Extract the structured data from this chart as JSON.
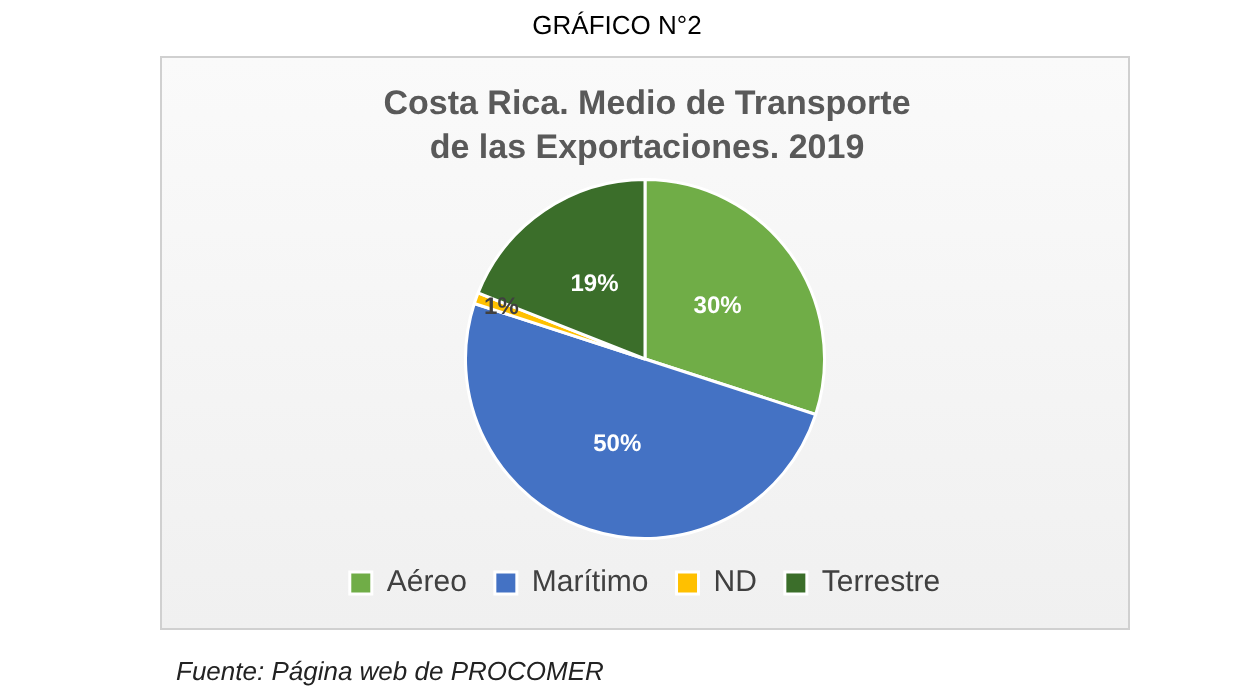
{
  "chart_data": {
    "type": "pie",
    "title": "Costa Rica. Medio de Transporte de las Exportaciones. 2019",
    "categories": [
      "Aéreo",
      "Marítimo",
      "ND",
      "Terrestre"
    ],
    "values": [
      30,
      50,
      1,
      19
    ],
    "colors": [
      "#70ad47",
      "#4472c4",
      "#ffc000",
      "#3b6e2a"
    ],
    "value_labels": [
      "30%",
      "50%",
      "1%",
      "19%"
    ],
    "legend": "bottom",
    "annotations": [
      "GRÁFICO N°2",
      "Fuente: Página web de PROCOMER"
    ]
  }
}
